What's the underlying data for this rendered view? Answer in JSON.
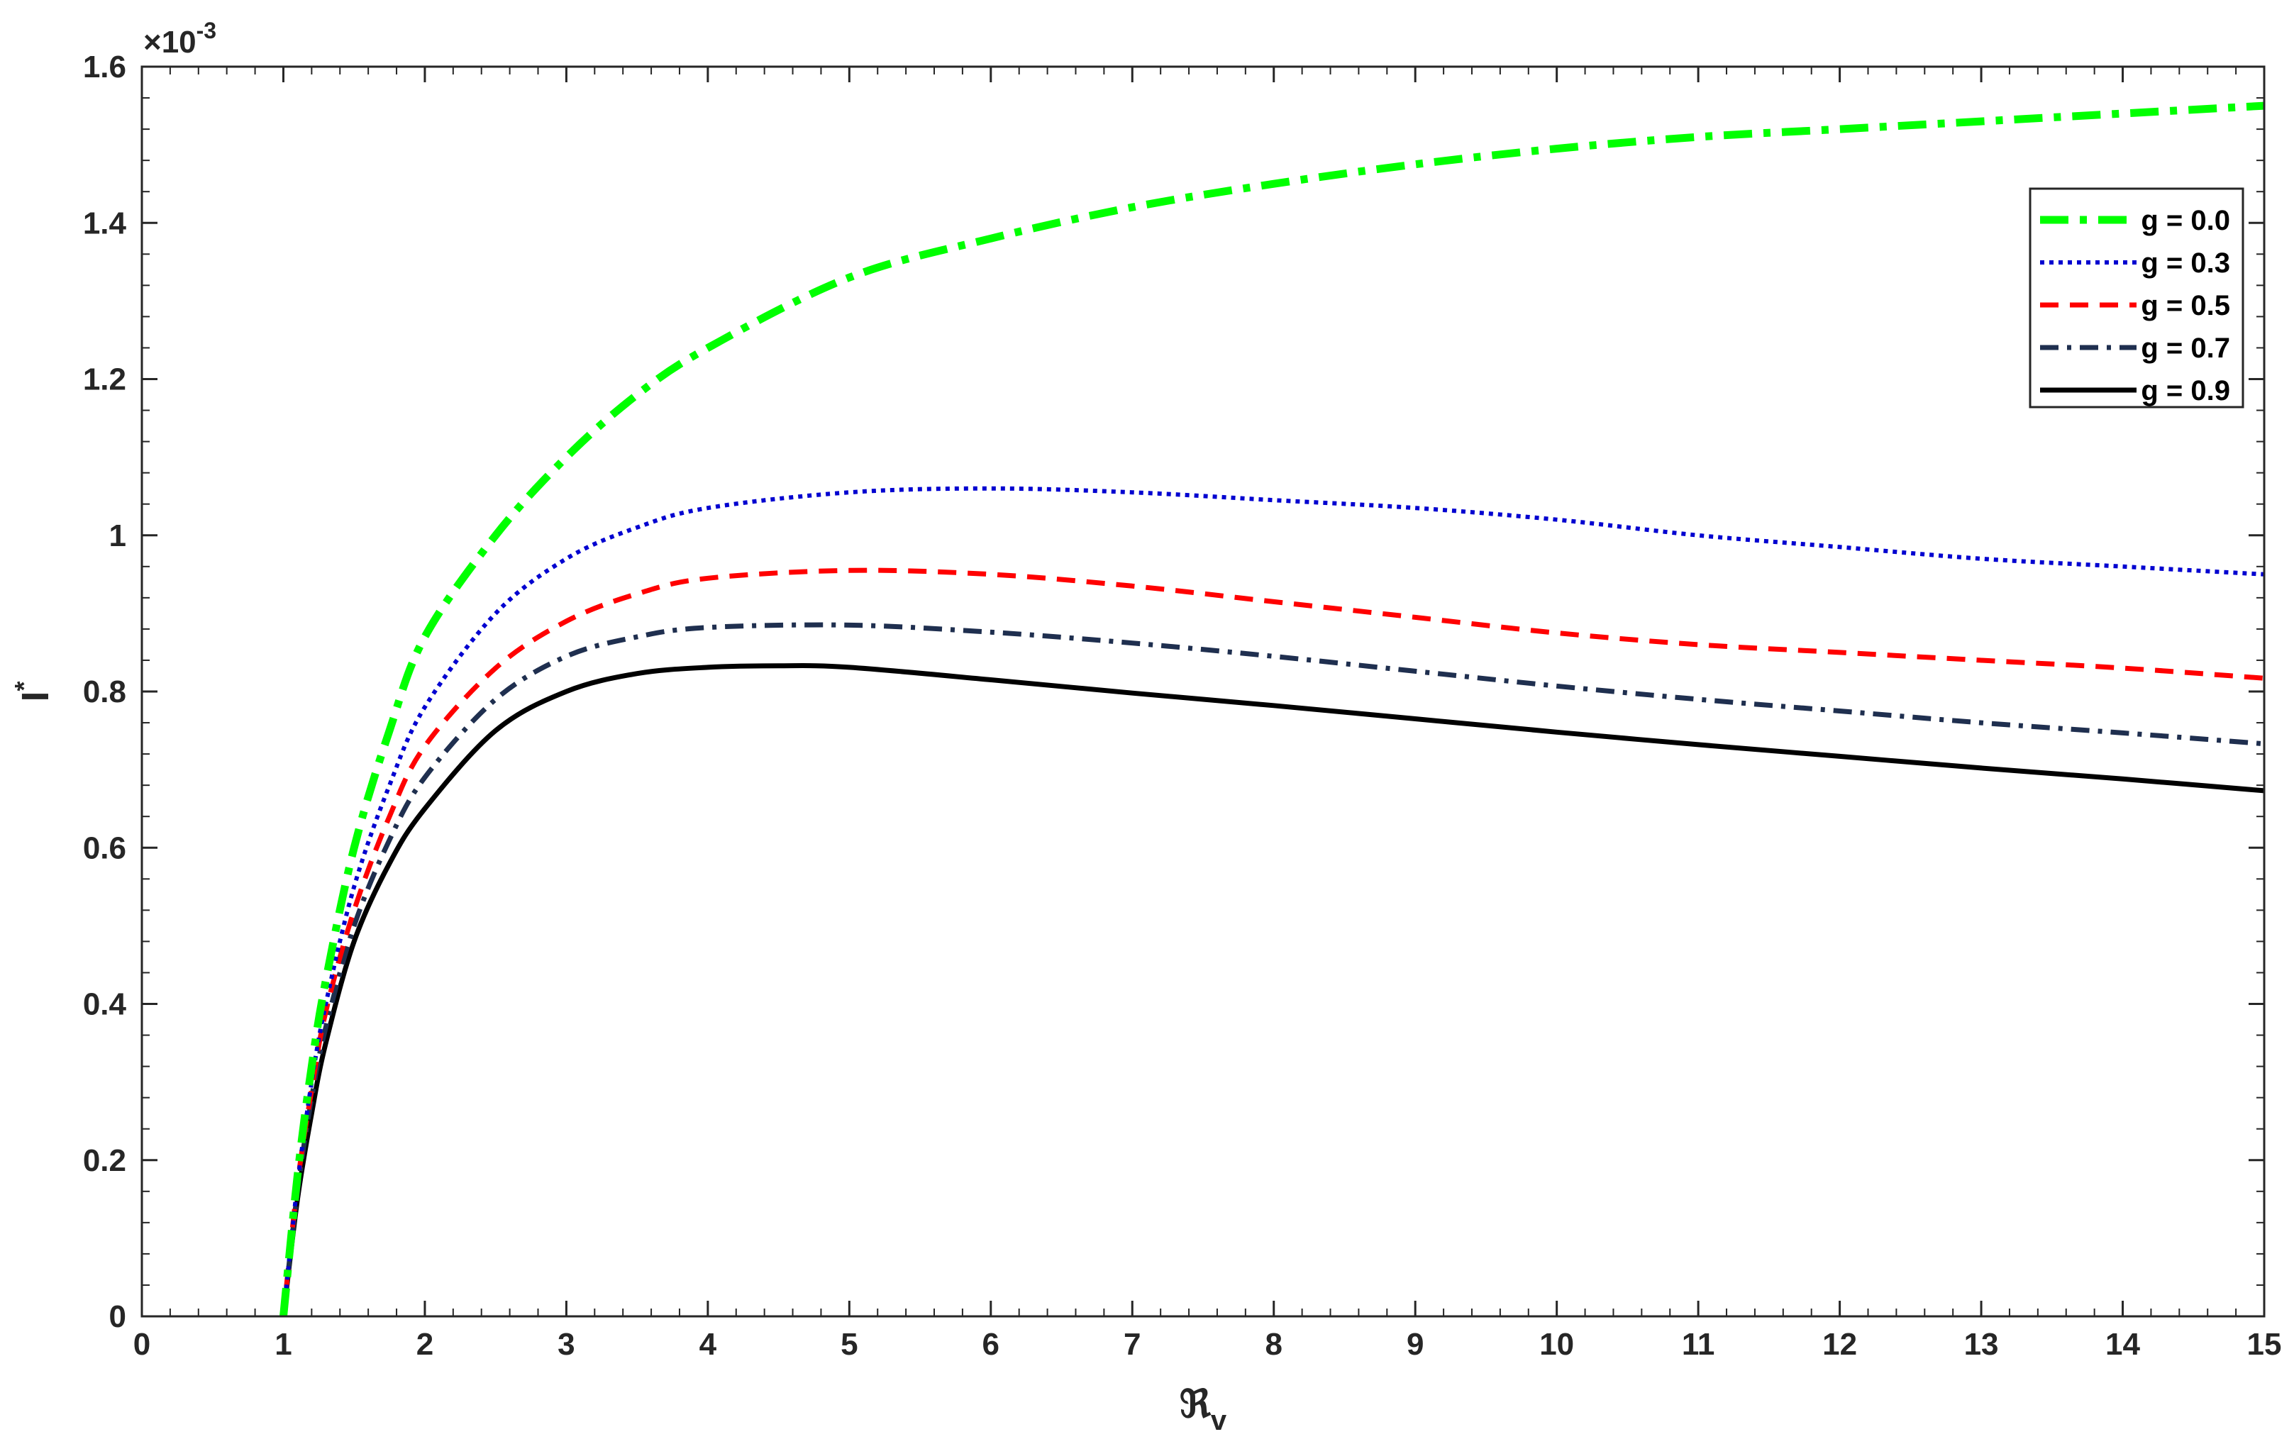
{
  "chart_data": {
    "type": "line",
    "xlabel_main": "ℜ",
    "xlabel_sub": "v",
    "ylabel_main": "I",
    "ylabel_sup": "*",
    "y_multiplier_prefix": "×10",
    "y_multiplier_exp": "-3",
    "xlim": [
      0,
      15
    ],
    "ylim": [
      0,
      1.6
    ],
    "x_ticks": [
      "0",
      "1",
      "2",
      "3",
      "4",
      "5",
      "6",
      "7",
      "8",
      "9",
      "10",
      "11",
      "12",
      "13",
      "14",
      "15"
    ],
    "y_ticks": [
      "0",
      "0.2",
      "0.4",
      "0.6",
      "0.8",
      "1",
      "1.2",
      "1.4",
      "1.6"
    ],
    "grid": false,
    "legend_position": "top-right",
    "series": [
      {
        "name": "g = 0.0",
        "color": "#00ff00",
        "dash": "dashdot",
        "x": [
          1.0,
          1.1,
          1.2,
          1.3,
          1.5,
          1.75,
          2.0,
          2.5,
          3.0,
          3.5,
          4.0,
          5.0,
          6.0,
          7.0,
          8.0,
          9.0,
          10.0,
          11.0,
          12.0,
          13.0,
          14.0,
          15.0
        ],
        "y": [
          0.0,
          0.18,
          0.32,
          0.43,
          0.6,
          0.75,
          0.87,
          1.0,
          1.1,
          1.18,
          1.24,
          1.33,
          1.38,
          1.42,
          1.45,
          1.475,
          1.495,
          1.51,
          1.52,
          1.53,
          1.54,
          1.55
        ]
      },
      {
        "name": "g = 0.3",
        "color": "#0000d0",
        "dash": "dotted",
        "x": [
          1.0,
          1.1,
          1.2,
          1.3,
          1.5,
          1.75,
          2.0,
          2.5,
          3.0,
          3.5,
          4.0,
          5.0,
          6.0,
          7.0,
          8.0,
          9.0,
          10.0,
          11.0,
          12.0,
          13.0,
          14.0,
          15.0
        ],
        "y": [
          0.0,
          0.17,
          0.3,
          0.4,
          0.55,
          0.68,
          0.78,
          0.9,
          0.97,
          1.01,
          1.035,
          1.055,
          1.06,
          1.055,
          1.045,
          1.035,
          1.02,
          1.0,
          0.985,
          0.97,
          0.96,
          0.95
        ]
      },
      {
        "name": "g = 0.5",
        "color": "#ff0000",
        "dash": "dashed",
        "x": [
          1.0,
          1.1,
          1.2,
          1.3,
          1.5,
          1.75,
          2.0,
          2.5,
          3.0,
          3.5,
          4.0,
          5.0,
          6.0,
          7.0,
          8.0,
          9.0,
          10.0,
          11.0,
          12.0,
          13.0,
          14.0,
          15.0
        ],
        "y": [
          0.0,
          0.17,
          0.29,
          0.39,
          0.52,
          0.64,
          0.73,
          0.83,
          0.89,
          0.925,
          0.945,
          0.955,
          0.95,
          0.935,
          0.915,
          0.895,
          0.875,
          0.86,
          0.85,
          0.84,
          0.83,
          0.817
        ]
      },
      {
        "name": "g = 0.7",
        "color": "#1f2f4f",
        "dash": "dashdot",
        "x": [
          1.0,
          1.1,
          1.2,
          1.3,
          1.5,
          1.75,
          2.0,
          2.5,
          3.0,
          3.5,
          4.0,
          5.0,
          6.0,
          7.0,
          8.0,
          9.0,
          10.0,
          11.0,
          12.0,
          13.0,
          14.0,
          15.0
        ],
        "y": [
          0.0,
          0.16,
          0.28,
          0.37,
          0.5,
          0.61,
          0.69,
          0.79,
          0.845,
          0.87,
          0.882,
          0.885,
          0.876,
          0.862,
          0.845,
          0.826,
          0.807,
          0.79,
          0.775,
          0.76,
          0.747,
          0.733
        ]
      },
      {
        "name": "g = 0.9",
        "color": "#000000",
        "dash": "solid",
        "x": [
          1.0,
          1.1,
          1.2,
          1.3,
          1.5,
          1.75,
          2.0,
          2.5,
          3.0,
          3.5,
          4.0,
          4.5,
          5.0,
          6.0,
          7.0,
          8.0,
          9.0,
          10.0,
          11.0,
          12.0,
          13.0,
          14.0,
          15.0
        ],
        "y": [
          0.0,
          0.15,
          0.26,
          0.35,
          0.48,
          0.58,
          0.65,
          0.75,
          0.8,
          0.823,
          0.831,
          0.833,
          0.831,
          0.815,
          0.798,
          0.782,
          0.765,
          0.748,
          0.732,
          0.717,
          0.702,
          0.688,
          0.673
        ]
      }
    ]
  }
}
